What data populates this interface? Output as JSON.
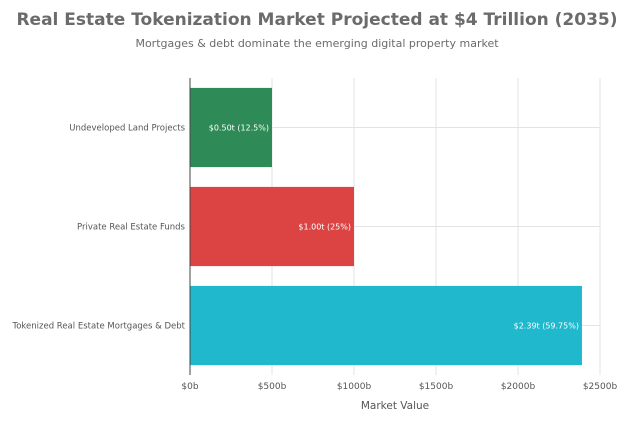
{
  "chart_data": {
    "type": "bar",
    "orientation": "horizontal",
    "title": "Real Estate Tokenization Market Projected at $4 Trillion (2035)",
    "subtitle": "Mortgages & debt dominate the emerging digital property market",
    "categories": [
      "Undeveloped Land Projects",
      "Private Real Estate Funds",
      "Tokenized Real Estate Mortgages & Debt"
    ],
    "values": [
      500,
      1000,
      2390
    ],
    "data_labels": [
      "$0.50t (12.5%)",
      "$1.00t (25%)",
      "$2.39t (59.75%)"
    ],
    "colors": [
      "#2e8b57",
      "#dc4444",
      "#1fb8cd"
    ],
    "xlabel": "Market Value",
    "ylabel": "",
    "xlim": [
      0,
      2500
    ],
    "x_ticks": [
      0,
      500,
      1000,
      1500,
      2000,
      2500
    ],
    "x_tick_labels": [
      "$0b",
      "$500b",
      "$1000b",
      "$1500b",
      "$2000b",
      "$2500b"
    ],
    "grid": true,
    "legend": "none"
  }
}
